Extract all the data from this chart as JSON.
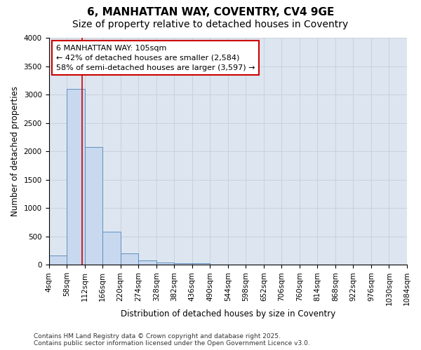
{
  "title1": "6, MANHATTAN WAY, COVENTRY, CV4 9GE",
  "title2": "Size of property relative to detached houses in Coventry",
  "xlabel": "Distribution of detached houses by size in Coventry",
  "ylabel": "Number of detached properties",
  "bin_edges": [
    4,
    58,
    112,
    166,
    220,
    274,
    328,
    382,
    436,
    490,
    544,
    598,
    652,
    706,
    760,
    814,
    868,
    922,
    976,
    1030,
    1084
  ],
  "counts": [
    160,
    3100,
    2080,
    580,
    200,
    80,
    40,
    30,
    20,
    0,
    0,
    0,
    0,
    0,
    0,
    0,
    0,
    0,
    0,
    0
  ],
  "bar_facecolor": "#c8d8ee",
  "bar_edgecolor": "#6090c0",
  "grid_color": "#c8d0dc",
  "bg_color": "#dde6f0",
  "fig_bg_color": "#ffffff",
  "property_size": 105,
  "vline_color": "#cc0000",
  "annotation_text": "6 MANHATTAN WAY: 105sqm\n← 42% of detached houses are smaller (2,584)\n58% of semi-detached houses are larger (3,597) →",
  "annotation_box_facecolor": "#ffffff",
  "annotation_border_color": "#cc0000",
  "ylim": [
    0,
    4000
  ],
  "yticks": [
    0,
    500,
    1000,
    1500,
    2000,
    2500,
    3000,
    3500,
    4000
  ],
  "footer": "Contains HM Land Registry data © Crown copyright and database right 2025.\nContains public sector information licensed under the Open Government Licence v3.0.",
  "title_fontsize": 11,
  "subtitle_fontsize": 10,
  "axis_label_fontsize": 8.5,
  "tick_fontsize": 7.5,
  "annotation_fontsize": 8,
  "footer_fontsize": 6.5
}
